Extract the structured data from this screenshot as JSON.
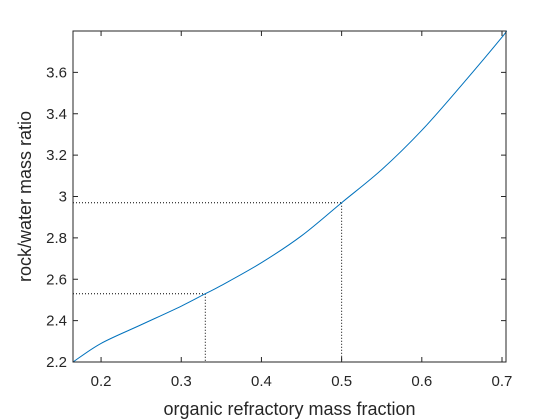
{
  "chart_data": {
    "type": "line",
    "title": "",
    "xlabel": "organic refractory mass fraction",
    "ylabel": "rock/water mass ratio",
    "xlim": [
      0.165,
      0.705
    ],
    "ylim": [
      2.2,
      3.8
    ],
    "x_ticks": [
      0.2,
      0.3,
      0.4,
      0.5,
      0.6,
      0.7
    ],
    "x_tick_labels": [
      "0.2",
      "0.3",
      "0.4",
      "0.5",
      "0.6",
      "0.7"
    ],
    "y_ticks": [
      2.2,
      2.4,
      2.6,
      2.8,
      3.0,
      3.2,
      3.4,
      3.6
    ],
    "y_tick_labels": [
      "2.2",
      "2.4",
      "2.6",
      "2.8",
      "3",
      "3.2",
      "3.4",
      "3.6"
    ],
    "grid": false,
    "line_color": "#0072bd",
    "series": [
      {
        "x": [
          0.165,
          0.2,
          0.25,
          0.3,
          0.33,
          0.35,
          0.4,
          0.45,
          0.5,
          0.55,
          0.6,
          0.65,
          0.7,
          0.705
        ],
        "y": [
          2.2,
          2.29,
          2.38,
          2.47,
          2.53,
          2.57,
          2.68,
          2.81,
          2.97,
          3.13,
          3.32,
          3.54,
          3.77,
          3.8
        ]
      }
    ],
    "reference_lines": [
      {
        "x": 0.33,
        "y": 2.53
      },
      {
        "x": 0.5,
        "y": 2.97
      }
    ]
  }
}
